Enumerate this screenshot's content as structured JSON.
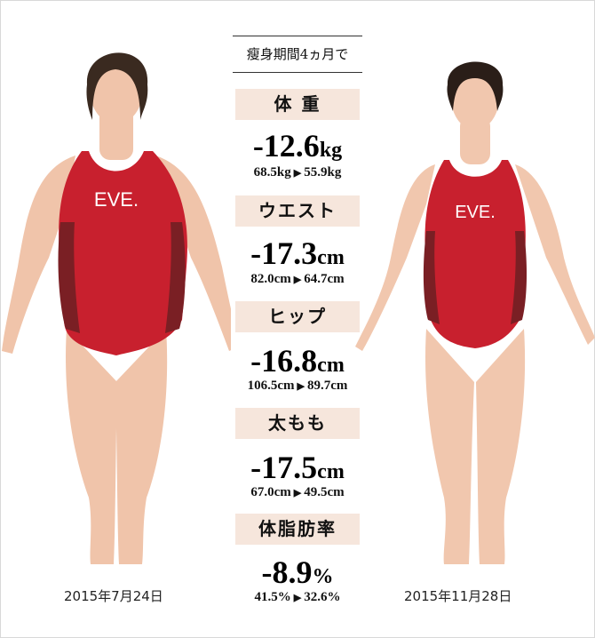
{
  "header": "瘦身期間4ヵ月で",
  "metrics": [
    {
      "label": "体 重",
      "change": "-12.6",
      "unit": "kg",
      "before": "68.5kg",
      "after": "55.9kg"
    },
    {
      "label": "ウエスト",
      "change": "-17.3",
      "unit": "cm",
      "before": "82.0cm",
      "after": "64.7cm"
    },
    {
      "label": "ヒップ",
      "change": "-16.8",
      "unit": "cm",
      "before": "106.5cm",
      "after": "89.7cm"
    },
    {
      "label": "太もも",
      "change": "-17.5",
      "unit": "cm",
      "before": "67.0cm",
      "after": "49.5cm"
    },
    {
      "label": "体脂肪率",
      "change": "-8.9",
      "unit": "%",
      "before": "41.5%",
      "after": "32.6%"
    }
  ],
  "arrow": "▶",
  "before_date": "2015年7月24日",
  "after_date": "2015年11月28日",
  "logo": "EVE.",
  "colors": {
    "swimsuit": "#c8202e",
    "side_panel": "#7a1f24",
    "label_bg": "#f6e6dc",
    "skin": "#f1c7ae"
  }
}
